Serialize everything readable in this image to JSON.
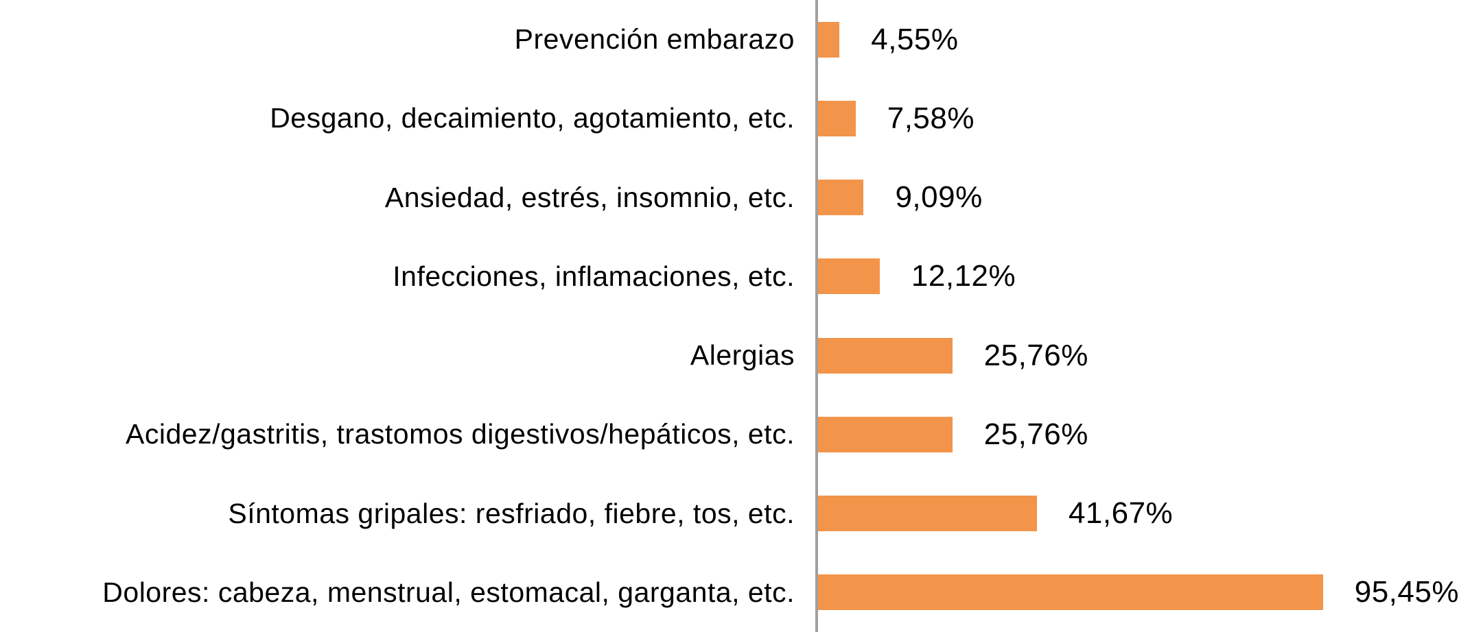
{
  "chart_data": {
    "type": "bar",
    "orientation": "horizontal",
    "title": "",
    "xlabel": "",
    "ylabel": "",
    "xlim": [
      0,
      100
    ],
    "grid": false,
    "legend": false,
    "bar_color": "#f2944a",
    "axis_color": "#a0a0a0",
    "categories": [
      "Prevención embarazo",
      "Desgano, decaimiento, agotamiento, etc.",
      "Ansiedad, estrés, insomnio, etc.",
      "Infecciones, inflamaciones, etc.",
      "Alergias",
      "Acidez/gastritis, trastomos digestivos/hepáticos, etc.",
      "Síntomas gripales: resfriado, fiebre, tos, etc.",
      "Dolores: cabeza, menstrual, estomacal, garganta, etc."
    ],
    "values": [
      4.55,
      7.58,
      9.09,
      12.12,
      25.76,
      25.76,
      41.67,
      95.45
    ],
    "value_labels": [
      "4,55%",
      "7,58%",
      "9,09%",
      "12,12%",
      "25,76%",
      "25,76%",
      "41,67%",
      "95,45%"
    ]
  }
}
